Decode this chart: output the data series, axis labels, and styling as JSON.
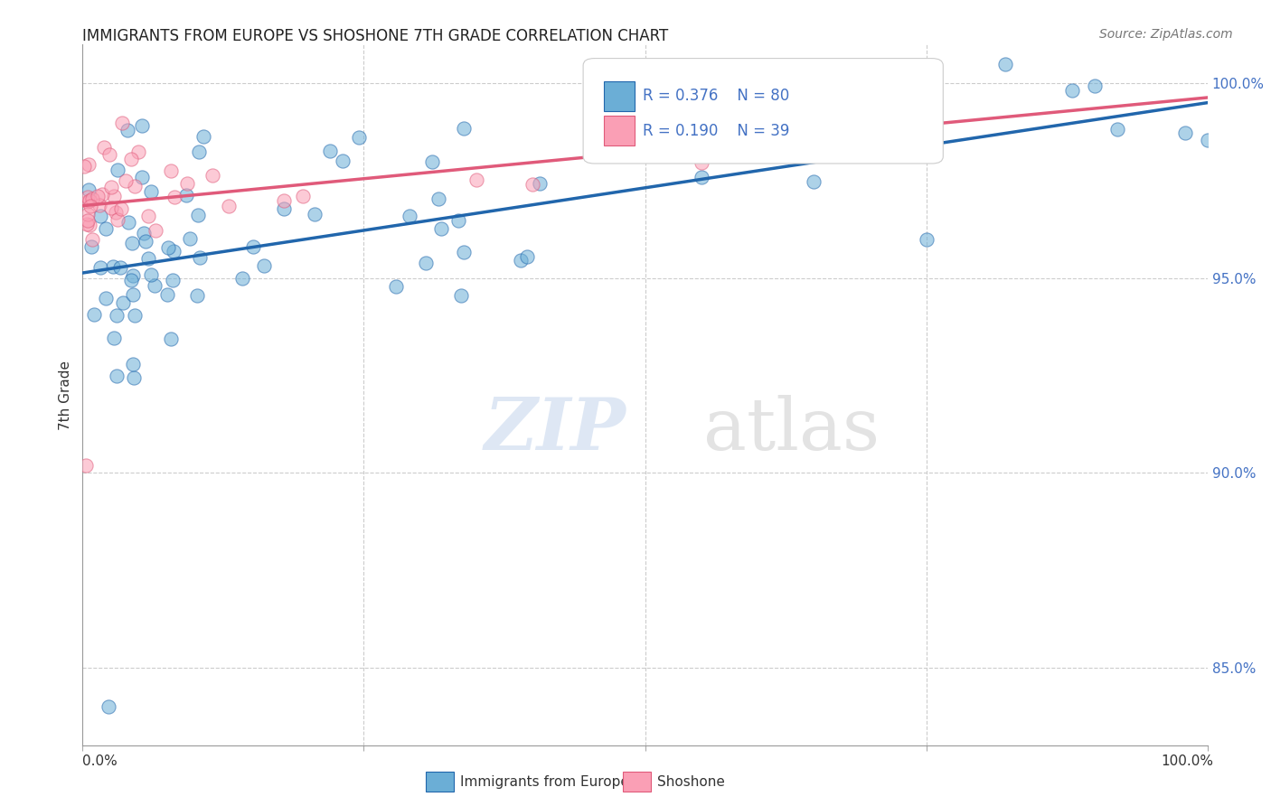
{
  "title": "IMMIGRANTS FROM EUROPE VS SHOSHONE 7TH GRADE CORRELATION CHART",
  "source": "Source: ZipAtlas.com",
  "ylabel": "7th Grade",
  "legend_label_blue": "Immigrants from Europe",
  "legend_label_pink": "Shoshone",
  "R_blue": 0.376,
  "N_blue": 80,
  "R_pink": 0.19,
  "N_pink": 39,
  "blue_color": "#6baed6",
  "pink_color": "#fa9fb5",
  "trend_blue": "#2166ac",
  "trend_pink": "#e05a7a",
  "ytick_vals": [
    85,
    90,
    95,
    100
  ],
  "ylim": [
    83,
    101
  ],
  "xlim": [
    0,
    100
  ]
}
